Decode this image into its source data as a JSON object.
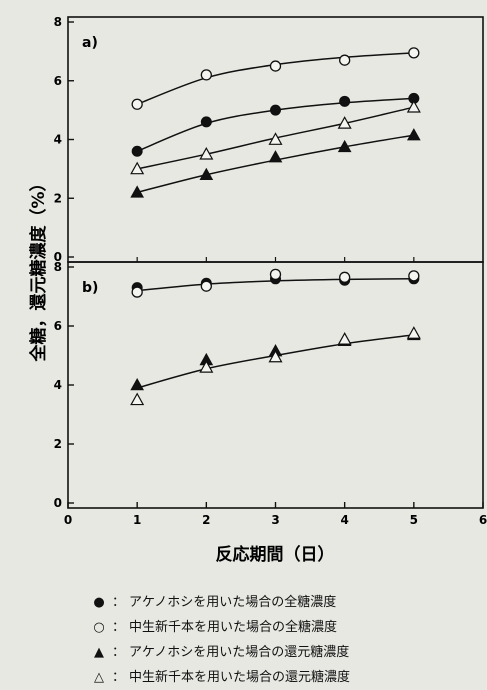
{
  "chart_data": [
    {
      "type": "line",
      "panel_label": "a)",
      "x": [
        1,
        2,
        3,
        4,
        5
      ],
      "xlim": [
        0,
        6
      ],
      "ylim": [
        0,
        8
      ],
      "yticks": [
        0,
        2,
        4,
        6,
        8
      ],
      "series": [
        {
          "name": "アケノホシを用いた場合の全糖濃度",
          "marker": "filled-circle",
          "values": [
            3.6,
            4.6,
            5.0,
            5.3,
            5.4
          ]
        },
        {
          "name": "中生新千本を用いた場合の全糖濃度",
          "marker": "open-circle",
          "values": [
            5.2,
            6.2,
            6.5,
            6.7,
            6.95
          ]
        },
        {
          "name": "アケノホシを用いた場合の還元糖濃度",
          "marker": "filled-triangle",
          "values": [
            2.2,
            2.8,
            3.4,
            3.75,
            4.15
          ]
        },
        {
          "name": "中生新千本を用いた場合の還元糖濃度",
          "marker": "open-triangle",
          "values": [
            3.0,
            3.5,
            4.0,
            4.55,
            5.1
          ]
        }
      ],
      "curves": [
        {
          "series": 0,
          "values": [
            3.6,
            4.55,
            5.0,
            5.25,
            5.4
          ]
        },
        {
          "series": 1,
          "values": [
            5.2,
            6.1,
            6.55,
            6.8,
            6.95
          ]
        },
        {
          "series": 2,
          "values": [
            2.2,
            2.8,
            3.3,
            3.75,
            4.15
          ]
        },
        {
          "series": 3,
          "values": [
            3.0,
            3.5,
            4.05,
            4.55,
            5.1
          ]
        }
      ]
    },
    {
      "type": "line",
      "panel_label": "b)",
      "x": [
        1,
        2,
        3,
        4,
        5
      ],
      "xlim": [
        0,
        6
      ],
      "ylim": [
        0,
        8
      ],
      "yticks": [
        0,
        2,
        4,
        6,
        8
      ],
      "xticks": [
        0,
        1,
        2,
        3,
        4,
        5,
        6
      ],
      "series": [
        {
          "name": "アケノホシを用いた場合の全糖濃度",
          "marker": "filled-circle",
          "values": [
            7.3,
            7.45,
            7.6,
            7.55,
            7.6
          ]
        },
        {
          "name": "中生新千本を用いた場合の全糖濃度",
          "marker": "open-circle",
          "values": [
            7.15,
            7.35,
            7.75,
            7.65,
            7.7
          ]
        },
        {
          "name": "アケノホシを用いた場合の還元糖濃度",
          "marker": "filled-triangle",
          "values": [
            4.0,
            4.85,
            5.15,
            5.5,
            5.7
          ]
        },
        {
          "name": "中生新千本を用いた場合の還元糖濃度",
          "marker": "open-triangle",
          "values": [
            3.5,
            4.6,
            4.95,
            5.55,
            5.75
          ]
        }
      ],
      "curves": [
        {
          "series": 0,
          "values": [
            7.2,
            7.42,
            7.53,
            7.58,
            7.6
          ]
        },
        {
          "series": 2,
          "values": [
            3.9,
            4.55,
            5.0,
            5.4,
            5.7
          ]
        }
      ]
    }
  ],
  "ylabel": "全糖，還元糖濃度（%）",
  "xlabel": "反応期間（日）",
  "legend": {
    "colon": "：",
    "items": [
      {
        "symbol": "●",
        "label": "アケノホシを用いた場合の全糖濃度"
      },
      {
        "symbol": "○",
        "label": "中生新千本を用いた場合の全糖濃度"
      },
      {
        "symbol": "▲",
        "label": "アケノホシを用いた場合の還元糖濃度"
      },
      {
        "symbol": "△",
        "label": "中生新千本を用いた場合の還元糖濃度"
      }
    ]
  }
}
